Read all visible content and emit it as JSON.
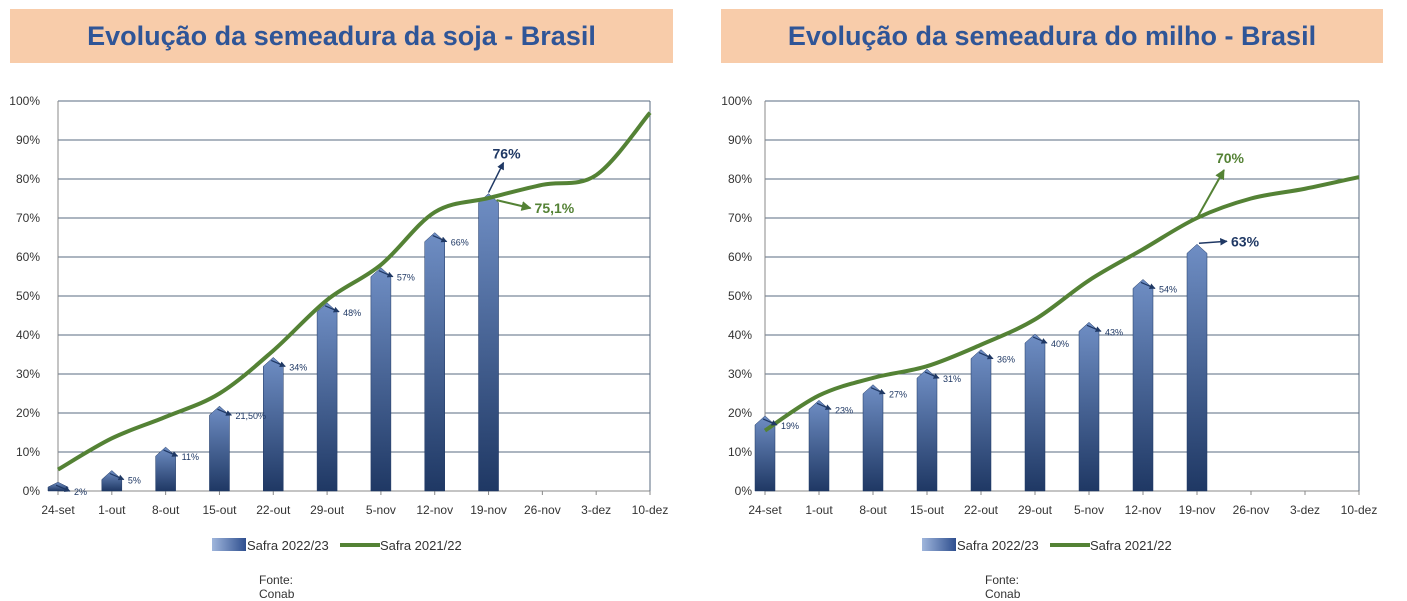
{
  "chart_data": [
    {
      "type": "bar",
      "title": "Evolução da semeadura da soja - Brasil",
      "categories": [
        "24-set",
        "1-out",
        "8-out",
        "15-out",
        "22-out",
        "29-out",
        "5-nov",
        "12-nov",
        "19-nov",
        "26-nov",
        "3-dez",
        "10-dez"
      ],
      "y_ticks": [
        "0%",
        "10%",
        "20%",
        "30%",
        "40%",
        "50%",
        "60%",
        "70%",
        "80%",
        "90%",
        "100%"
      ],
      "ylim": [
        0,
        100
      ],
      "grid": true,
      "legend_position": "bottom",
      "series": [
        {
          "name": "Safra 2022/23",
          "kind": "bar",
          "color": "#2f4f8f",
          "values": [
            2,
            5,
            11,
            21.5,
            34,
            48,
            57,
            66,
            76,
            null,
            null,
            null
          ],
          "labels": [
            "2%",
            "5%",
            "11%",
            "21,50%",
            "34%",
            "48%",
            "57%",
            "66%",
            "76%",
            "",
            "",
            ""
          ]
        },
        {
          "name": "Safra 2021/22",
          "kind": "line",
          "color": "#548235",
          "values": [
            5.5,
            13.5,
            19,
            25,
            36,
            49,
            58,
            71.5,
            75.1,
            78.5,
            81,
            97
          ]
        }
      ],
      "callouts": [
        {
          "text": "76%",
          "color": "#1f3864"
        },
        {
          "text": "75,1%",
          "color": "#548235"
        }
      ],
      "source": "Fonte: Conab"
    },
    {
      "type": "bar",
      "title": "Evolução da semeadura do milho - Brasil",
      "categories": [
        "24-set",
        "1-out",
        "8-out",
        "15-out",
        "22-out",
        "29-out",
        "5-nov",
        "12-nov",
        "19-nov",
        "26-nov",
        "3-dez",
        "10-dez"
      ],
      "y_ticks": [
        "0%",
        "10%",
        "20%",
        "30%",
        "40%",
        "50%",
        "60%",
        "70%",
        "80%",
        "90%",
        "100%"
      ],
      "ylim": [
        0,
        100
      ],
      "grid": true,
      "legend_position": "bottom",
      "series": [
        {
          "name": "Safra 2022/23",
          "kind": "bar",
          "color": "#2f4f8f",
          "values": [
            19,
            23,
            27,
            31,
            36,
            40,
            43,
            54,
            63,
            null,
            null,
            null
          ],
          "labels": [
            "19%",
            "23%",
            "27%",
            "31%",
            "36%",
            "40%",
            "43%",
            "54%",
            "63%",
            "",
            "",
            ""
          ]
        },
        {
          "name": "Safra 2021/22",
          "kind": "line",
          "color": "#548235",
          "values": [
            15.5,
            24.5,
            29,
            32,
            37.5,
            44,
            54,
            62,
            70,
            75,
            77.5,
            80.5
          ]
        }
      ],
      "callouts": [
        {
          "text": "63%",
          "color": "#1f3864"
        },
        {
          "text": "70%",
          "color": "#548235"
        }
      ],
      "source": "Fonte: Conab"
    }
  ]
}
